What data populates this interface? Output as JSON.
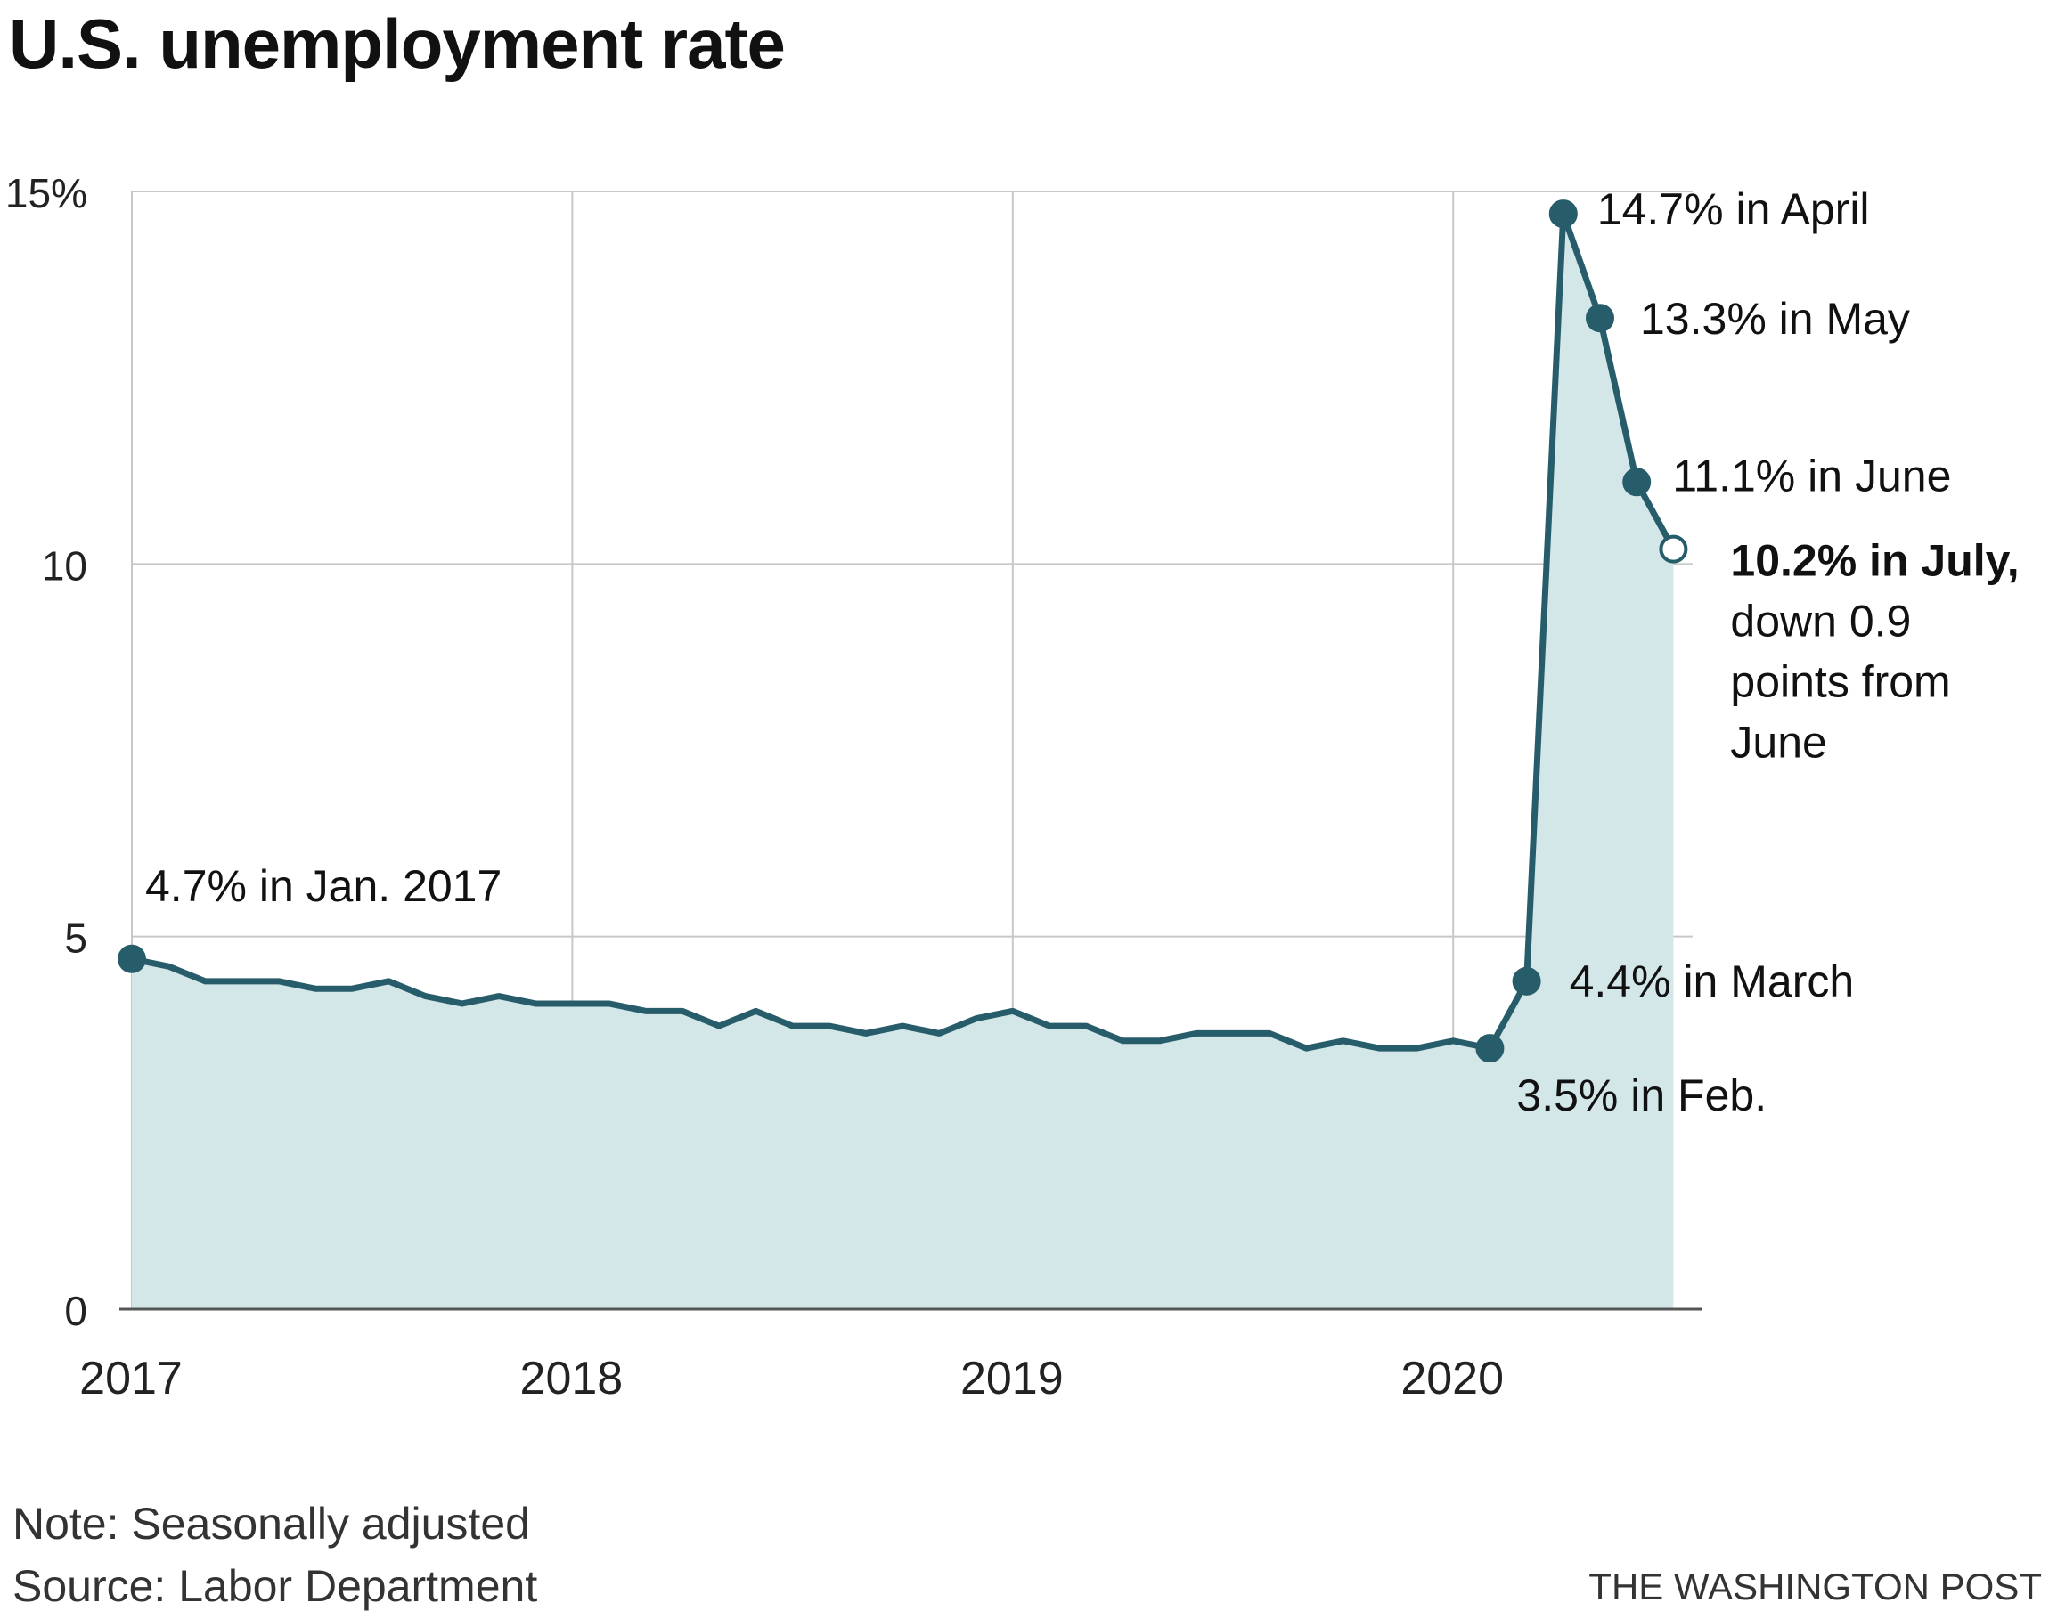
{
  "page_title": "U.S. unemployment rate",
  "note": "Note: Seasonally adjusted",
  "source": "Source: Labor Department",
  "credit": "THE WASHINGTON POST",
  "colors": {
    "line": "#275d6b",
    "area": "#d3e6e8",
    "grid": "#c8c8c8",
    "axis": "#555555"
  },
  "chart_data": {
    "type": "area",
    "title": "U.S. unemployment rate",
    "xlabel": "",
    "ylabel": "",
    "ylim": [
      0,
      15
    ],
    "y_ticks": [
      "0",
      "5",
      "10",
      "15%"
    ],
    "x_ticks": [
      "2017",
      "2018",
      "2019",
      "2020"
    ],
    "grid": true,
    "x_start": "2017-01",
    "x_end": "2020-07",
    "series": [
      {
        "values": [
          4.7,
          4.6,
          4.4,
          4.4,
          4.4,
          4.3,
          4.3,
          4.4,
          4.2,
          4.1,
          4.2,
          4.1,
          4.1,
          4.1,
          4.0,
          4.0,
          3.8,
          4.0,
          3.8,
          3.8,
          3.7,
          3.8,
          3.7,
          3.9,
          4.0,
          3.8,
          3.8,
          3.6,
          3.6,
          3.7,
          3.7,
          3.7,
          3.5,
          3.6,
          3.5,
          3.5,
          3.6,
          3.5,
          4.4,
          14.7,
          13.3,
          11.1,
          10.2
        ]
      }
    ],
    "annotations": [
      {
        "text": "4.7% in Jan. 2017",
        "date": "2017-01",
        "value": 4.7
      },
      {
        "text": "3.5% in Feb.",
        "date": "2020-02",
        "value": 3.5
      },
      {
        "text": "4.4% in March",
        "date": "2020-03",
        "value": 4.4
      },
      {
        "text": "14.7% in April",
        "date": "2020-04",
        "value": 14.7
      },
      {
        "text": "13.3% in May",
        "date": "2020-05",
        "value": 13.3
      },
      {
        "text": "11.1% in June",
        "date": "2020-06",
        "value": 11.1
      },
      {
        "text_bold": "10.2% in July,",
        "text_lines": [
          "down 0.9",
          "points from",
          "June"
        ],
        "date": "2020-07",
        "value": 10.2
      }
    ]
  }
}
